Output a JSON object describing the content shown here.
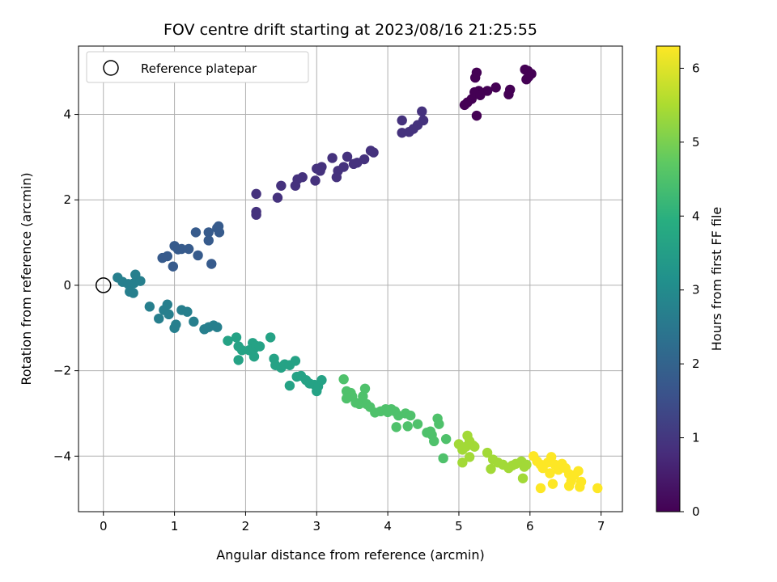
{
  "chart_data": {
    "type": "scatter",
    "title": "FOV centre drift starting at 2023/08/16 21:25:55",
    "xlabel": "Angular distance from reference (arcmin)",
    "ylabel": "Rotation from reference (arcmin)",
    "xlim": [
      -0.35,
      7.3
    ],
    "ylim": [
      -5.3,
      5.6
    ],
    "xticks": [
      "0",
      "1",
      "2",
      "3",
      "4",
      "5",
      "6",
      "7"
    ],
    "yticks": [
      "−4",
      "−2",
      "0",
      "2",
      "4"
    ],
    "grid": true,
    "legend": {
      "placement": "top-left",
      "entries": [
        "Reference platepar"
      ]
    },
    "reference_point": {
      "x": 0,
      "y": 0
    },
    "colorbar": {
      "label": "Hours from first FF file",
      "range": [
        0,
        6.3
      ],
      "ticks": [
        "0",
        "1",
        "2",
        "3",
        "4",
        "5",
        "6"
      ],
      "colormap": "viridis"
    },
    "series": [
      {
        "values": [
          [
            5.93,
            5.05
          ],
          [
            5.97,
            5.02
          ],
          [
            6.02,
            4.95
          ],
          [
            5.98,
            4.88
          ],
          [
            5.95,
            4.82
          ],
          [
            5.25,
            4.98
          ],
          [
            5.23,
            4.86
          ],
          [
            5.72,
            4.58
          ],
          [
            5.7,
            4.47
          ],
          [
            5.52,
            4.63
          ],
          [
            5.4,
            4.55
          ],
          [
            5.28,
            4.55
          ],
          [
            5.22,
            4.52
          ],
          [
            5.18,
            4.36
          ],
          [
            5.12,
            4.28
          ],
          [
            5.08,
            4.22
          ],
          [
            5.25,
            3.97
          ],
          [
            5.3,
            4.45
          ]
        ]
      },
      {
        "values": [
          [
            4.48,
            4.07
          ],
          [
            4.5,
            3.86
          ],
          [
            4.42,
            3.75
          ],
          [
            4.36,
            3.66
          ],
          [
            4.3,
            3.59
          ],
          [
            4.2,
            3.86
          ],
          [
            4.2,
            3.57
          ],
          [
            3.8,
            3.11
          ],
          [
            3.76,
            3.15
          ],
          [
            3.67,
            2.95
          ],
          [
            3.57,
            2.87
          ],
          [
            3.52,
            2.84
          ],
          [
            3.43,
            3.01
          ],
          [
            3.38,
            2.77
          ],
          [
            3.3,
            2.68
          ],
          [
            3.28,
            2.53
          ],
          [
            3.22,
            2.98
          ],
          [
            3.07,
            2.77
          ],
          [
            3.05,
            2.68
          ],
          [
            3.0,
            2.73
          ],
          [
            2.98,
            2.45
          ],
          [
            2.8,
            2.53
          ],
          [
            2.73,
            2.48
          ],
          [
            2.7,
            2.33
          ],
          [
            2.5,
            2.33
          ],
          [
            2.45,
            2.05
          ],
          [
            2.15,
            2.14
          ],
          [
            2.15,
            1.72
          ],
          [
            2.15,
            1.65
          ]
        ]
      },
      {
        "values": [
          [
            1.62,
            1.38
          ],
          [
            1.6,
            1.34
          ],
          [
            1.63,
            1.24
          ],
          [
            1.48,
            1.24
          ],
          [
            1.48,
            1.05
          ],
          [
            1.3,
            1.24
          ],
          [
            1.33,
            0.7
          ],
          [
            1.2,
            0.85
          ],
          [
            1.1,
            0.85
          ],
          [
            1.0,
            0.92
          ],
          [
            1.05,
            0.84
          ],
          [
            0.9,
            0.68
          ],
          [
            0.83,
            0.64
          ],
          [
            0.98,
            0.44
          ],
          [
            1.52,
            0.5
          ]
        ]
      },
      {
        "values": [
          [
            0.2,
            0.18
          ],
          [
            0.27,
            0.08
          ],
          [
            0.35,
            0.03
          ],
          [
            0.45,
            0.25
          ],
          [
            0.43,
            0.05
          ],
          [
            0.52,
            0.1
          ],
          [
            0.37,
            -0.15
          ],
          [
            0.42,
            -0.18
          ],
          [
            0.65,
            -0.5
          ],
          [
            0.78,
            -0.78
          ],
          [
            0.85,
            -0.58
          ],
          [
            0.9,
            -0.45
          ],
          [
            0.92,
            -0.68
          ],
          [
            1.0,
            -1.0
          ],
          [
            1.02,
            -0.92
          ],
          [
            1.1,
            -0.58
          ],
          [
            1.18,
            -0.62
          ],
          [
            1.27,
            -0.85
          ],
          [
            1.42,
            -1.03
          ],
          [
            1.48,
            -0.98
          ],
          [
            1.55,
            -0.94
          ],
          [
            1.6,
            -0.98
          ]
        ]
      },
      {
        "values": [
          [
            1.75,
            -1.3
          ],
          [
            1.87,
            -1.22
          ],
          [
            1.9,
            -1.43
          ],
          [
            1.95,
            -1.52
          ],
          [
            2.05,
            -1.52
          ],
          [
            2.1,
            -1.35
          ],
          [
            2.12,
            -1.48
          ],
          [
            2.15,
            -1.42
          ],
          [
            2.2,
            -1.43
          ],
          [
            1.9,
            -1.75
          ],
          [
            2.12,
            -1.67
          ],
          [
            2.35,
            -1.22
          ],
          [
            2.4,
            -1.72
          ],
          [
            2.42,
            -1.87
          ],
          [
            2.5,
            -1.93
          ],
          [
            2.55,
            -1.85
          ],
          [
            2.62,
            -1.87
          ],
          [
            2.7,
            -1.77
          ],
          [
            2.72,
            -2.14
          ],
          [
            2.78,
            -2.12
          ],
          [
            2.85,
            -2.22
          ],
          [
            2.9,
            -2.3
          ],
          [
            2.97,
            -2.33
          ],
          [
            3.02,
            -2.37
          ],
          [
            3.07,
            -2.22
          ],
          [
            3.0,
            -2.48
          ],
          [
            2.62,
            -2.35
          ]
        ]
      },
      {
        "values": [
          [
            3.38,
            -2.2
          ],
          [
            3.42,
            -2.48
          ],
          [
            3.48,
            -2.52
          ],
          [
            3.5,
            -2.6
          ],
          [
            3.55,
            -2.75
          ],
          [
            3.6,
            -2.78
          ],
          [
            3.65,
            -2.6
          ],
          [
            3.7,
            -2.78
          ],
          [
            3.75,
            -2.85
          ],
          [
            3.68,
            -2.42
          ],
          [
            3.82,
            -2.98
          ],
          [
            3.9,
            -2.95
          ],
          [
            3.97,
            -2.9
          ],
          [
            4.05,
            -2.9
          ],
          [
            4.1,
            -2.95
          ],
          [
            4.15,
            -3.05
          ],
          [
            4.25,
            -3.0
          ],
          [
            4.32,
            -3.05
          ],
          [
            4.12,
            -3.32
          ],
          [
            4.28,
            -3.3
          ],
          [
            4.42,
            -3.25
          ],
          [
            4.55,
            -3.45
          ],
          [
            4.62,
            -3.5
          ],
          [
            4.65,
            -3.65
          ],
          [
            4.7,
            -3.12
          ],
          [
            4.72,
            -3.25
          ],
          [
            4.6,
            -3.42
          ],
          [
            4.82,
            -3.6
          ],
          [
            4.78,
            -4.05
          ],
          [
            3.42,
            -2.65
          ],
          [
            4.0,
            -2.97
          ]
        ]
      },
      {
        "values": [
          [
            5.0,
            -3.72
          ],
          [
            5.05,
            -3.85
          ],
          [
            5.1,
            -3.78
          ],
          [
            5.15,
            -3.65
          ],
          [
            5.2,
            -3.75
          ],
          [
            5.22,
            -3.78
          ],
          [
            5.05,
            -4.15
          ],
          [
            5.15,
            -4.02
          ],
          [
            5.12,
            -3.52
          ],
          [
            5.4,
            -3.92
          ],
          [
            5.48,
            -4.08
          ],
          [
            5.55,
            -4.15
          ],
          [
            5.62,
            -4.2
          ],
          [
            5.7,
            -4.28
          ],
          [
            5.75,
            -4.22
          ],
          [
            5.8,
            -4.18
          ],
          [
            5.88,
            -4.12
          ],
          [
            5.92,
            -4.25
          ],
          [
            5.95,
            -4.2
          ],
          [
            5.45,
            -4.3
          ],
          [
            5.9,
            -4.52
          ]
        ]
      },
      {
        "values": [
          [
            6.05,
            -4.0
          ],
          [
            6.1,
            -4.12
          ],
          [
            6.15,
            -4.2
          ],
          [
            6.18,
            -4.28
          ],
          [
            6.25,
            -4.15
          ],
          [
            6.3,
            -4.02
          ],
          [
            6.35,
            -4.2
          ],
          [
            6.4,
            -4.32
          ],
          [
            6.45,
            -4.18
          ],
          [
            6.5,
            -4.28
          ],
          [
            6.55,
            -4.42
          ],
          [
            6.58,
            -4.58
          ],
          [
            6.62,
            -4.45
          ],
          [
            6.68,
            -4.35
          ],
          [
            6.72,
            -4.6
          ],
          [
            6.7,
            -4.72
          ],
          [
            6.55,
            -4.7
          ],
          [
            6.32,
            -4.65
          ],
          [
            6.15,
            -4.75
          ],
          [
            6.95,
            -4.75
          ],
          [
            6.28,
            -4.4
          ]
        ]
      }
    ]
  }
}
